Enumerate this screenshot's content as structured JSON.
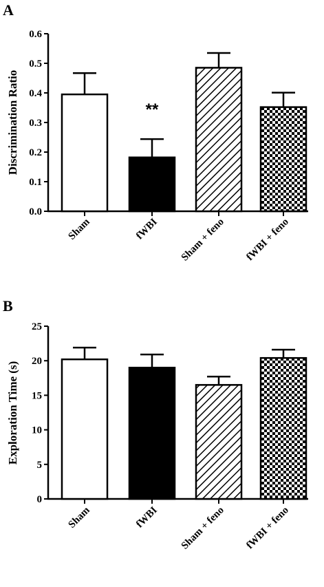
{
  "chart_data": [
    {
      "type": "bar",
      "panel": "A",
      "categories": [
        "Sham",
        "fWBI",
        "Sham + feno",
        "fWBI + feno"
      ],
      "values": [
        0.395,
        0.182,
        0.485,
        0.352
      ],
      "errors": [
        0.072,
        0.062,
        0.05,
        0.049
      ],
      "fills": [
        "white",
        "black",
        "diagonal-hatch",
        "checkerboard"
      ],
      "ylabel": "Discrimination Ratio",
      "ylim": [
        0,
        0.6
      ],
      "yticks": [
        "0.0",
        "0.1",
        "0.2",
        "0.3",
        "0.4",
        "0.5",
        "0.6"
      ],
      "annotations": [
        {
          "category": "fWBI",
          "text": "**"
        }
      ]
    },
    {
      "type": "bar",
      "panel": "B",
      "categories": [
        "Sham",
        "fWBI",
        "Sham + feno",
        "fWBI + feno"
      ],
      "values": [
        20.2,
        19.0,
        16.5,
        20.4
      ],
      "errors": [
        1.7,
        1.9,
        1.2,
        1.2
      ],
      "fills": [
        "white",
        "black",
        "diagonal-hatch",
        "checkerboard"
      ],
      "ylabel": "Exploration Time (s)",
      "ylim": [
        0,
        25
      ],
      "yticks": [
        "0",
        "5",
        "10",
        "15",
        "20",
        "25"
      ],
      "annotations": []
    }
  ]
}
